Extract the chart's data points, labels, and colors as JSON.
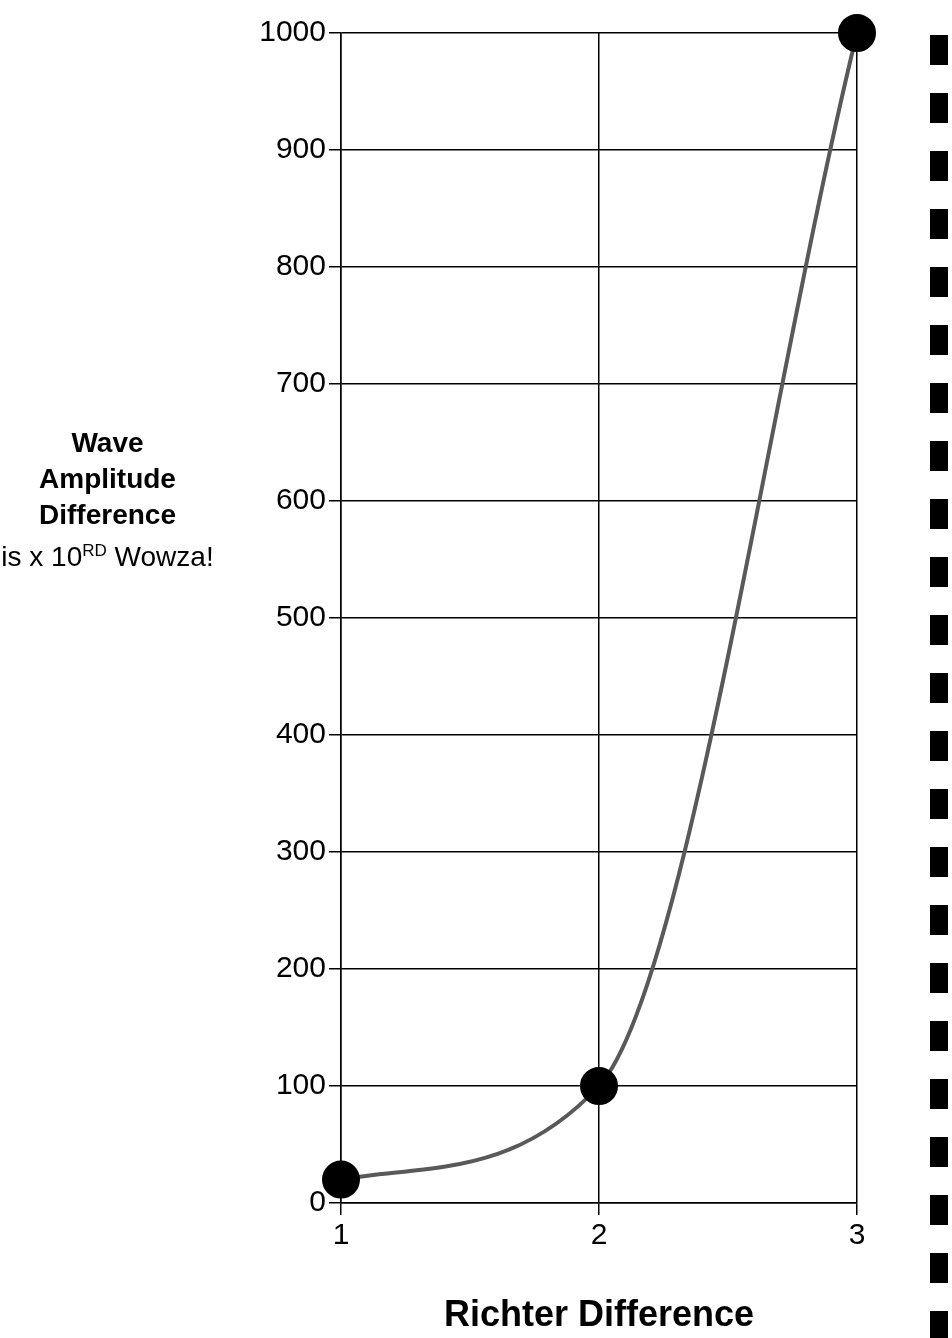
{
  "chart_data": {
    "type": "line",
    "xlabel": "Richter Difference",
    "ylabel": "Wave Amplitude Difference",
    "annotations": [
      "is x 10$^{RD}$ Wowza!"
    ],
    "x": [
      1,
      2,
      3
    ],
    "series": [
      {
        "color": "#595959",
        "values": [
          20,
          100,
          1000
        ]
      }
    ],
    "xlim": [
      1,
      3
    ],
    "xticks": [
      1,
      2,
      3
    ],
    "ylim": [
      0,
      1000
    ],
    "yticks": [
      0,
      100,
      200,
      300,
      400,
      500,
      600,
      700,
      800,
      900,
      1000
    ],
    "grid": true,
    "legend": false,
    "marker": "circle",
    "line_style": "solid"
  }
}
